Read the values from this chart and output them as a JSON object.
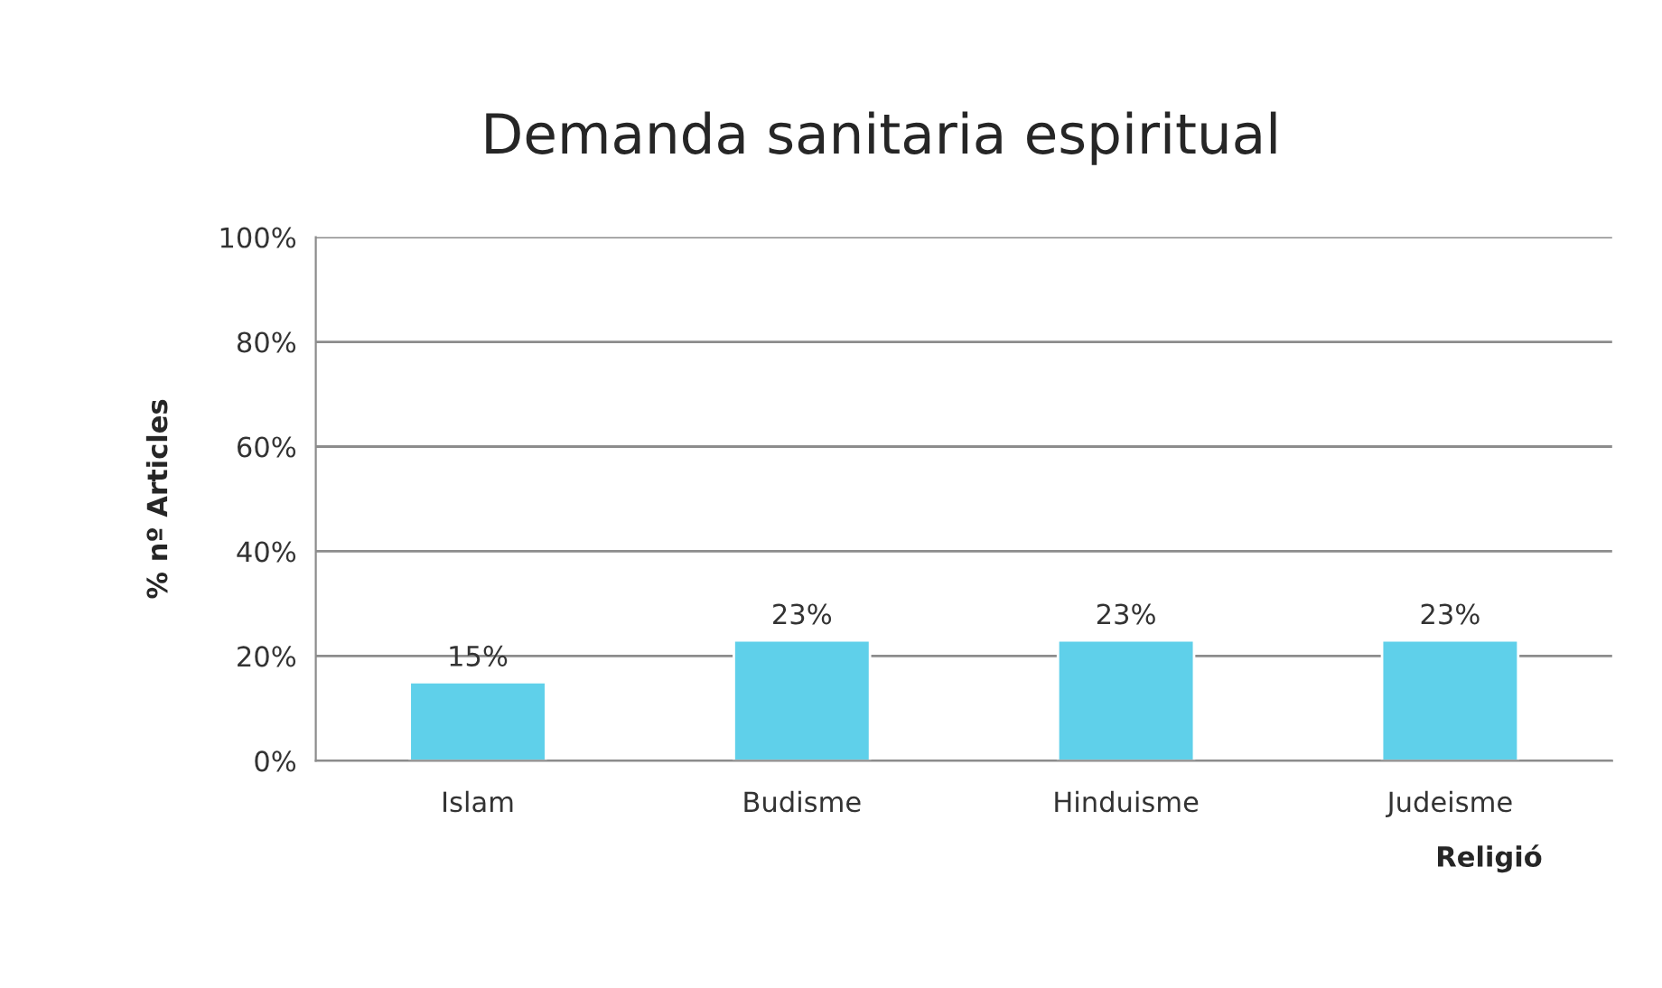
{
  "chart_data": {
    "type": "bar",
    "title": "Demanda sanitaria espiritual",
    "xlabel": "Religió",
    "ylabel": "% nº Articles",
    "categories": [
      "Islam",
      "Budisme",
      "Hinduisme",
      "Judeisme"
    ],
    "values": [
      15,
      23,
      23,
      23
    ],
    "value_labels": [
      "15%",
      "23%",
      "23%",
      "23%"
    ],
    "color": "#5fd0ea",
    "ylim": [
      0,
      100
    ],
    "yticks": [
      {
        "value": 0,
        "label": "0%"
      },
      {
        "value": 20,
        "label": "20%"
      },
      {
        "value": 40,
        "label": "40%"
      },
      {
        "value": 60,
        "label": "60%"
      },
      {
        "value": 80,
        "label": "80%"
      },
      {
        "value": 100,
        "label": "100%"
      }
    ],
    "grid": "y",
    "legend": false
  }
}
